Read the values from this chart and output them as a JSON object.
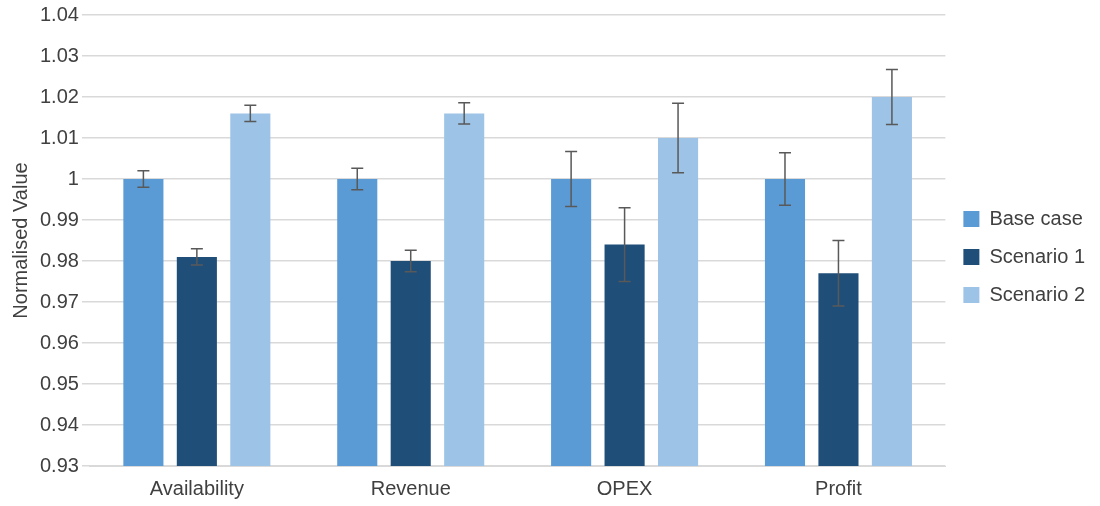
{
  "chart_data": {
    "type": "bar",
    "ylabel": "Normalised Value",
    "categories": [
      "Availability",
      "Revenue",
      "OPEX",
      "Profit"
    ],
    "series": [
      {
        "name": "Base case",
        "color": "#5b9bd5",
        "values": [
          1,
          1,
          1,
          1
        ],
        "errors": [
          0.002,
          0.0026,
          0.0067,
          0.0064
        ]
      },
      {
        "name": "Scenario 1",
        "color": "#1f4e79",
        "values": [
          0.981,
          0.98,
          0.984,
          0.977
        ],
        "errors": [
          0.002,
          0.0026,
          0.009,
          0.008
        ]
      },
      {
        "name": "Scenario 2",
        "color": "#9dc3e6",
        "values": [
          1.016,
          1.016,
          1.01,
          1.02
        ],
        "errors": [
          0.002,
          0.0026,
          0.0085,
          0.0067
        ]
      }
    ],
    "ylim": [
      0.93,
      1.04
    ],
    "yticks": [
      0.93,
      0.94,
      0.95,
      0.96,
      0.97,
      0.98,
      0.99,
      1,
      1.01,
      1.02,
      1.03,
      1.04
    ],
    "grid": "y",
    "legend": "right"
  }
}
